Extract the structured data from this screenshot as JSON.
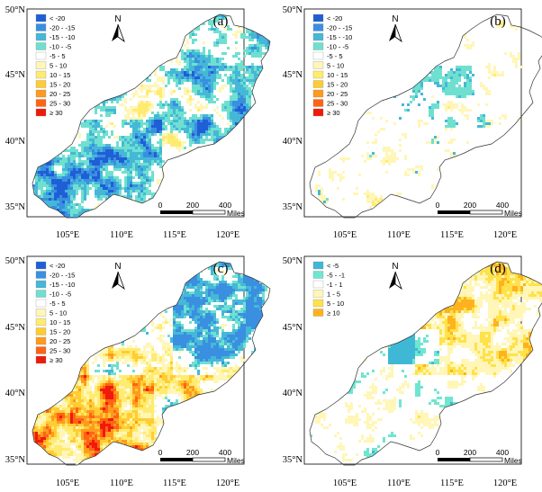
{
  "figure": {
    "panels": [
      {
        "id": "a",
        "tag": "(a)",
        "legend": [
          "< -20",
          "-20 - -15",
          "-15 - -10",
          "-10 - -5",
          "-5 - 5",
          "5 - 10",
          "10 - 15",
          "15 - 20",
          "20 - 25",
          "25 - 30",
          "≥ 30"
        ],
        "legend_colors": [
          "#1f5fd6",
          "#3a8fe0",
          "#45b8d8",
          "#6fe0d0",
          "#ffffff",
          "#fff6b8",
          "#ffeb70",
          "#ffcc33",
          "#ff9a1f",
          "#ff6314",
          "#f01a0a"
        ],
        "pattern": "cool"
      },
      {
        "id": "b",
        "tag": "(b)",
        "legend": [
          "< -20",
          "-20 - -15",
          "-15 - -10",
          "-10 - -5",
          "-5 - 5",
          "5 - 10",
          "10 - 15",
          "15 - 20",
          "20 - 25",
          "25 - 30",
          "≥ 30"
        ],
        "legend_colors": [
          "#1f5fd6",
          "#3a8fe0",
          "#45b8d8",
          "#6fe0d0",
          "#ffffff",
          "#fff6b8",
          "#ffeb70",
          "#ffcc33",
          "#ff9a1f",
          "#ff6314",
          "#f01a0a"
        ],
        "pattern": "sparse"
      },
      {
        "id": "c",
        "tag": "(c)",
        "legend": [
          "< -20",
          "-20 - -15",
          "-15 - -10",
          "-10 - -5",
          "-5 - 5",
          "5 - 10",
          "10 - 15",
          "15 - 20",
          "20 - 25",
          "25 - 30",
          "≥ 30"
        ],
        "legend_colors": [
          "#1f5fd6",
          "#3a8fe0",
          "#45b8d8",
          "#6fe0d0",
          "#ffffff",
          "#fff6b8",
          "#ffeb70",
          "#ffcc33",
          "#ff9a1f",
          "#ff6314",
          "#f01a0a"
        ],
        "pattern": "warm"
      },
      {
        "id": "d",
        "tag": "(d)",
        "legend": [
          "< -5",
          "-5 - -1",
          "-1 - 1",
          "1 - 5",
          "5 - 10",
          "≥ 10"
        ],
        "legend_colors": [
          "#3fb8d6",
          "#6fe6d0",
          "#ffffff",
          "#fff6b8",
          "#ffe24a",
          "#ffb21f"
        ],
        "pattern": "diff"
      }
    ],
    "lat_labels": [
      "50°N",
      "45°N",
      "40°N",
      "35°N"
    ],
    "lon_labels": [
      "105°E",
      "110°E",
      "115°E",
      "120°E"
    ],
    "north_label": "N",
    "scale": {
      "ticks": [
        "0",
        "200",
        "400"
      ],
      "unit": "Miles"
    }
  }
}
